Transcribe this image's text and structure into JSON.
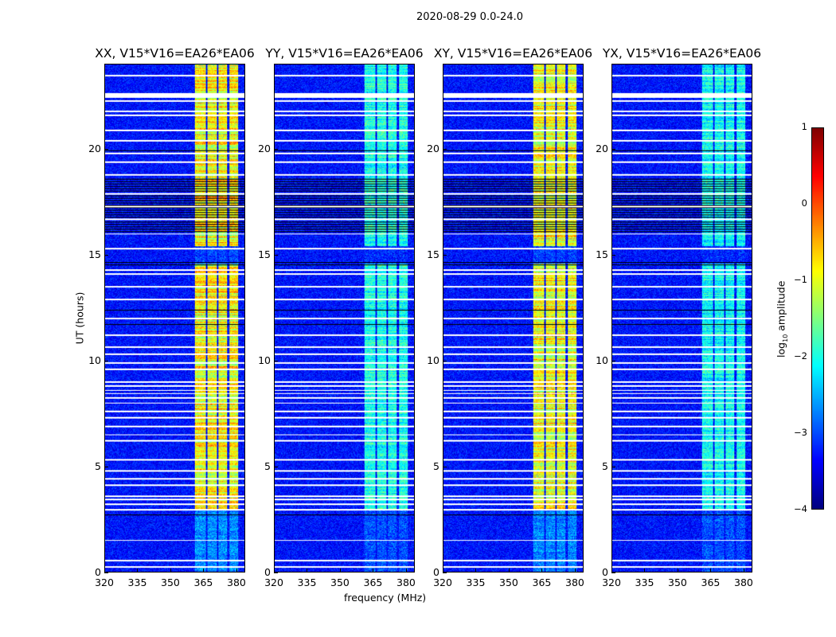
{
  "chart_data": {
    "type": "heatmap",
    "title": "2020-08-29 0.0-24.0",
    "xlabel": "frequency (MHz)",
    "ylabel": "UT (hours)",
    "xlim": [
      320,
      384
    ],
    "ylim": [
      0,
      24
    ],
    "xticks": [
      "320",
      "335",
      "350",
      "365",
      "380"
    ],
    "yticks": [
      "0",
      "5",
      "10",
      "15",
      "20"
    ],
    "colormap": "jet",
    "colorbar": {
      "label_prefix": "log",
      "label_sub": "10",
      "label_suffix": " amplitude",
      "range": [
        -4,
        1
      ],
      "ticks": [
        "1",
        "0",
        "−1",
        "−2",
        "−3",
        "−4"
      ]
    },
    "baseline_log_amplitude": -3.3,
    "rfi_band_mhz": [
      361,
      381
    ],
    "rfi_subbands_mhz": [
      [
        361,
        366
      ],
      [
        367,
        371
      ],
      [
        372,
        376
      ],
      [
        377,
        381
      ]
    ],
    "flagged_white_hours": [
      0.25,
      0.55,
      1.5,
      2.95,
      3.2,
      3.45,
      3.6,
      4.1,
      4.4,
      4.8,
      5.3,
      6.2,
      6.5,
      6.9,
      7.3,
      7.6,
      8.0,
      8.25,
      8.45,
      8.6,
      8.8,
      9.0,
      9.6,
      9.9,
      10.3,
      10.65,
      11.2,
      12.0,
      12.9,
      13.5,
      14.1,
      14.3,
      15.3,
      16.0,
      16.7,
      17.3,
      17.9,
      18.8,
      19.4,
      19.8,
      20.4,
      20.9,
      21.6,
      21.8,
      22.3,
      22.5,
      22.6,
      23.5
    ],
    "flagged_black_hours": [
      [
        2.6,
        2.75
      ],
      [
        11.7,
        11.8
      ],
      [
        12.35,
        12.45
      ],
      [
        14.5,
        14.75
      ],
      [
        15.9,
        18.6
      ],
      [
        19.9,
        20.0
      ]
    ],
    "panels": [
      {
        "title": "XX, V15*V16=EA26*EA06",
        "band_peak": -0.3
      },
      {
        "title": "YY, V15*V16=EA26*EA06",
        "band_peak": -1.7
      },
      {
        "title": "XY, V15*V16=EA26*EA06",
        "band_peak": -0.4
      },
      {
        "title": "YX, V15*V16=EA26*EA06",
        "band_peak": -1.8
      }
    ]
  }
}
